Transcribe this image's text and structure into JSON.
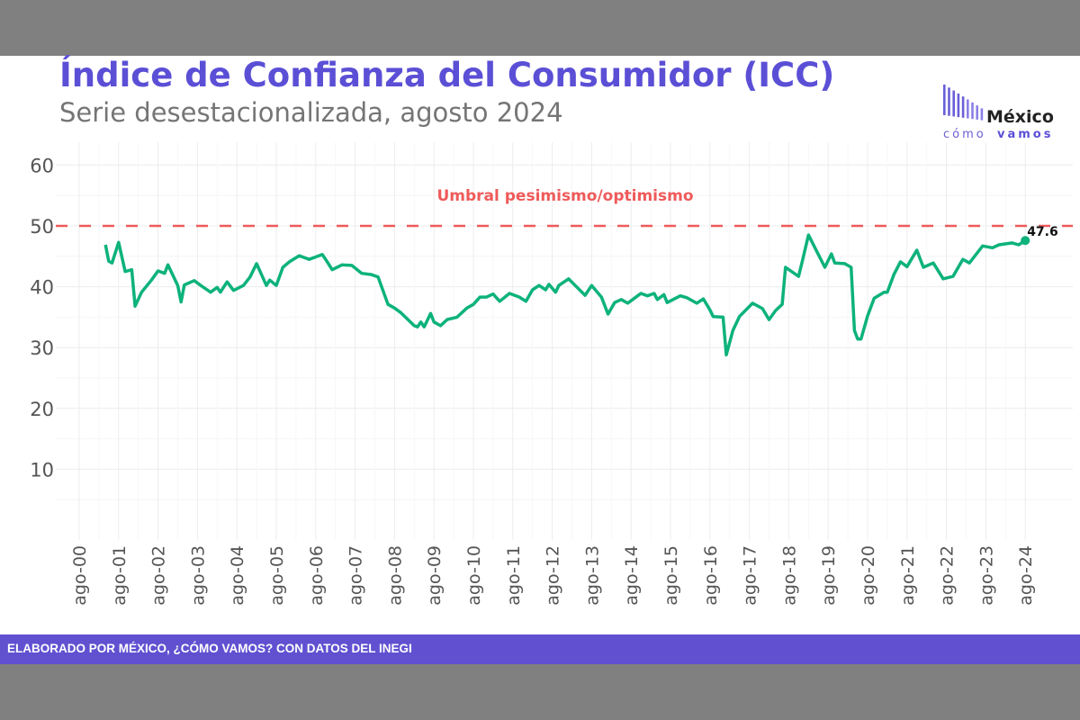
{
  "header": {
    "title": "Índice de Confianza del Consumidor (ICC)",
    "subtitle": "Serie desestacionalizada, agosto 2024"
  },
  "logo": {
    "line1": "México",
    "line2a": "cómo",
    "line2b": "vamos"
  },
  "footer": {
    "text": "ELABORADO POR MÉXICO, ¿CÓMO VAMOS? CON DATOS DEL INEGI"
  },
  "colors": {
    "title": "#5b4fd6",
    "line": "#0db27c",
    "threshold": "#ef5a5a",
    "footer": "#6150d0"
  },
  "chart_data": {
    "type": "line",
    "title": "Índice de Confianza del Consumidor (ICC)",
    "subtitle": "Serie desestacionalizada, agosto 2024",
    "ylim": [
      0,
      63
    ],
    "yticks": [
      10,
      20,
      30,
      40,
      50,
      60
    ],
    "xticks": [
      "ago-00",
      "ago-01",
      "ago-02",
      "ago-03",
      "ago-04",
      "ago-05",
      "ago-06",
      "ago-07",
      "ago-08",
      "ago-09",
      "ago-10",
      "ago-11",
      "ago-12",
      "ago-13",
      "ago-14",
      "ago-15",
      "ago-16",
      "ago-17",
      "ago-18",
      "ago-19",
      "ago-20",
      "ago-21",
      "ago-22",
      "ago-23",
      "ago-24"
    ],
    "grid": true,
    "threshold": {
      "value": 50,
      "label": "Umbral pesimismo/optimismo"
    },
    "last_label": "47.6",
    "series": [
      {
        "points": [
          [
            "2001-04",
            46.9
          ],
          [
            "2001-05",
            44.2
          ],
          [
            "2001-06",
            43.9
          ],
          [
            "2001-08",
            47.3
          ],
          [
            "2001-10",
            42.5
          ],
          [
            "2001-12",
            42.8
          ],
          [
            "2002-01",
            36.8
          ],
          [
            "2002-03",
            39.1
          ],
          [
            "2002-06",
            41.1
          ],
          [
            "2002-08",
            42.6
          ],
          [
            "2002-10",
            42.2
          ],
          [
            "2002-11",
            43.6
          ],
          [
            "2003-02",
            40.2
          ],
          [
            "2003-03",
            37.5
          ],
          [
            "2003-04",
            40.3
          ],
          [
            "2003-07",
            41.0
          ],
          [
            "2003-09",
            40.2
          ],
          [
            "2003-12",
            39.1
          ],
          [
            "2004-02",
            39.9
          ],
          [
            "2004-03",
            39.1
          ],
          [
            "2004-05",
            40.8
          ],
          [
            "2004-07",
            39.4
          ],
          [
            "2004-10",
            40.2
          ],
          [
            "2004-12",
            41.6
          ],
          [
            "2005-02",
            43.8
          ],
          [
            "2005-05",
            40.2
          ],
          [
            "2005-06",
            41.1
          ],
          [
            "2005-08",
            40.2
          ],
          [
            "2005-10",
            43.2
          ],
          [
            "2005-12",
            44.1
          ],
          [
            "2006-03",
            45.1
          ],
          [
            "2006-06",
            44.5
          ],
          [
            "2006-08",
            44.9
          ],
          [
            "2006-10",
            45.3
          ],
          [
            "2006-11",
            44.5
          ],
          [
            "2007-01",
            42.8
          ],
          [
            "2007-04",
            43.6
          ],
          [
            "2007-07",
            43.5
          ],
          [
            "2007-10",
            42.2
          ],
          [
            "2008-01",
            42.0
          ],
          [
            "2008-03",
            41.6
          ],
          [
            "2008-06",
            37.1
          ],
          [
            "2008-08",
            36.5
          ],
          [
            "2008-10",
            35.7
          ],
          [
            "2009-02",
            33.6
          ],
          [
            "2009-03",
            33.4
          ],
          [
            "2009-04",
            34.2
          ],
          [
            "2009-05",
            33.4
          ],
          [
            "2009-07",
            35.6
          ],
          [
            "2009-08",
            34.2
          ],
          [
            "2009-10",
            33.6
          ],
          [
            "2009-12",
            34.6
          ],
          [
            "2010-03",
            35.0
          ],
          [
            "2010-06",
            36.5
          ],
          [
            "2010-08",
            37.1
          ],
          [
            "2010-10",
            38.3
          ],
          [
            "2010-12",
            38.3
          ],
          [
            "2011-02",
            38.8
          ],
          [
            "2011-04",
            37.6
          ],
          [
            "2011-07",
            38.9
          ],
          [
            "2011-10",
            38.3
          ],
          [
            "2011-12",
            37.6
          ],
          [
            "2012-02",
            39.5
          ],
          [
            "2012-04",
            40.2
          ],
          [
            "2012-06",
            39.5
          ],
          [
            "2012-07",
            40.4
          ],
          [
            "2012-09",
            39.1
          ],
          [
            "2012-10",
            40.2
          ],
          [
            "2013-01",
            41.3
          ],
          [
            "2013-03",
            40.2
          ],
          [
            "2013-06",
            38.6
          ],
          [
            "2013-08",
            40.2
          ],
          [
            "2013-11",
            38.3
          ],
          [
            "2014-01",
            35.5
          ],
          [
            "2014-03",
            37.4
          ],
          [
            "2014-05",
            37.9
          ],
          [
            "2014-07",
            37.3
          ],
          [
            "2014-10",
            38.5
          ],
          [
            "2014-11",
            38.9
          ],
          [
            "2015-01",
            38.5
          ],
          [
            "2015-03",
            38.9
          ],
          [
            "2015-04",
            37.9
          ],
          [
            "2015-06",
            38.7
          ],
          [
            "2015-07",
            37.4
          ],
          [
            "2015-11",
            38.5
          ],
          [
            "2016-01",
            38.2
          ],
          [
            "2016-04",
            37.3
          ],
          [
            "2016-06",
            38.0
          ],
          [
            "2016-08",
            36.2
          ],
          [
            "2016-09",
            35.1
          ],
          [
            "2016-12",
            35.0
          ],
          [
            "2017-01",
            28.8
          ],
          [
            "2017-03",
            32.8
          ],
          [
            "2017-05",
            35.1
          ],
          [
            "2017-09",
            37.3
          ],
          [
            "2017-12",
            36.4
          ],
          [
            "2018-02",
            34.6
          ],
          [
            "2018-04",
            36.1
          ],
          [
            "2018-06",
            37.1
          ],
          [
            "2018-07",
            43.2
          ],
          [
            "2018-11",
            41.7
          ],
          [
            "2018-12",
            43.9
          ],
          [
            "2019-02",
            48.5
          ],
          [
            "2019-05",
            45.3
          ],
          [
            "2019-07",
            43.2
          ],
          [
            "2019-09",
            45.4
          ],
          [
            "2019-10",
            43.9
          ],
          [
            "2020-01",
            43.8
          ],
          [
            "2020-03",
            43.2
          ],
          [
            "2020-04",
            32.8
          ],
          [
            "2020-05",
            31.4
          ],
          [
            "2020-06",
            31.4
          ],
          [
            "2020-08",
            35.2
          ],
          [
            "2020-10",
            38.1
          ],
          [
            "2021-01",
            39.1
          ],
          [
            "2021-02",
            39.1
          ],
          [
            "2021-04",
            42.0
          ],
          [
            "2021-06",
            44.1
          ],
          [
            "2021-08",
            43.3
          ],
          [
            "2021-11",
            46.0
          ],
          [
            "2022-01",
            43.2
          ],
          [
            "2022-04",
            43.9
          ],
          [
            "2022-07",
            41.3
          ],
          [
            "2022-10",
            41.7
          ],
          [
            "2023-01",
            44.5
          ],
          [
            "2023-03",
            43.9
          ],
          [
            "2023-07",
            46.7
          ],
          [
            "2023-10",
            46.4
          ],
          [
            "2023-12",
            46.9
          ],
          [
            "2024-04",
            47.2
          ],
          [
            "2024-06",
            46.9
          ],
          [
            "2024-08",
            47.6
          ]
        ]
      }
    ]
  }
}
